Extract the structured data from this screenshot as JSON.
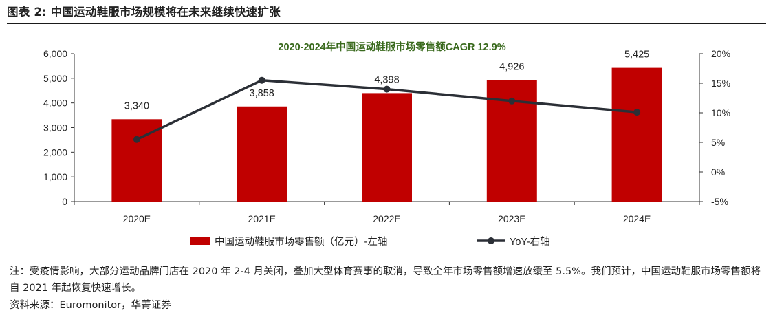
{
  "figure_title": "图表 2: 中国运动鞋服市场规模将在未来继续快速扩张",
  "chart_data": {
    "type": "bar+line",
    "title": "2020-2024年中国运动鞋服市场零售额CAGR 12.9%",
    "categories": [
      "2020E",
      "2021E",
      "2022E",
      "2023E",
      "2024E"
    ],
    "series": [
      {
        "name": "中国运动鞋服市场零售额（亿元）-左轴",
        "type": "bar",
        "axis": "left",
        "values": [
          3340,
          3858,
          4398,
          4926,
          5425
        ],
        "labels": [
          "3,340",
          "3,858",
          "4,398",
          "4,926",
          "5,425"
        ],
        "color": "#c00000"
      },
      {
        "name": "YoY-右轴",
        "type": "line",
        "axis": "right",
        "values": [
          5.5,
          15.5,
          14.0,
          12.0,
          10.1
        ],
        "color": "#2b2f36"
      }
    ],
    "left_axis": {
      "ylim": [
        0,
        6000
      ],
      "ticks": [
        0,
        1000,
        2000,
        3000,
        4000,
        5000,
        6000
      ],
      "tick_labels": [
        "0",
        "1,000",
        "2,000",
        "3,000",
        "4,000",
        "5,000",
        "6,000"
      ]
    },
    "right_axis": {
      "ylim": [
        -5,
        20
      ],
      "ticks": [
        -5,
        0,
        5,
        10,
        15,
        20
      ],
      "tick_labels": [
        "-5%",
        "0%",
        "5%",
        "10%",
        "15%",
        "20%"
      ]
    },
    "grid": false,
    "legend": "bottom",
    "title_color": "#3a6a1e"
  },
  "notes": {
    "note": "注：受疫情影响，大部分运动品牌门店在 2020 年 2-4 月关闭，叠加大型体育赛事的取消，导致全年市场零售额增速放缓至 5.5%。我们预计，中国运动鞋服市场零售额将自 2021 年起恢复快速增长。",
    "source": "资料来源：Euromonitor，华菁证券"
  }
}
